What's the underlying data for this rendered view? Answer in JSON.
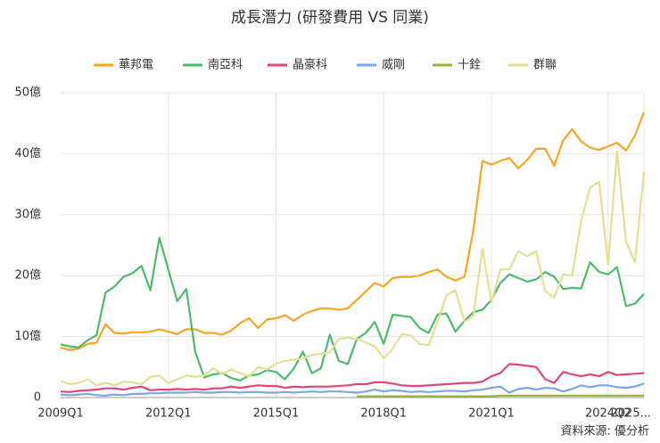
{
  "chart_data": {
    "type": "line",
    "title": "成長潛力 (研發費用 VS 同業)",
    "source": "資料來源: 優分析",
    "categories": [
      "2009Q1",
      null,
      null,
      null,
      null,
      null,
      null,
      null,
      null,
      null,
      null,
      null,
      "2012Q1",
      null,
      null,
      null,
      null,
      null,
      null,
      null,
      null,
      null,
      null,
      null,
      "2015Q1",
      null,
      null,
      null,
      null,
      null,
      null,
      null,
      null,
      null,
      null,
      null,
      "2018Q1",
      null,
      null,
      null,
      null,
      null,
      null,
      null,
      null,
      null,
      null,
      null,
      "2021Q1",
      null,
      null,
      null,
      null,
      null,
      null,
      null,
      null,
      null,
      null,
      null,
      null,
      "2024Q2",
      null,
      null,
      null,
      "2025..."
    ],
    "ylim": [
      0,
      50
    ],
    "yticks": [
      0,
      {
        "value": 10,
        "label": "10億"
      },
      {
        "value": 20,
        "label": "20億"
      },
      {
        "value": 30,
        "label": "30億"
      },
      {
        "value": 40,
        "label": "40億"
      },
      {
        "value": 50,
        "label": "50億"
      }
    ],
    "grid": true,
    "legend": "top",
    "series": [
      {
        "name": "華邦電",
        "color": "#f5a623",
        "values": [
          8.2,
          7.8,
          8.0,
          8.8,
          9.0,
          12.0,
          10.6,
          10.5,
          10.7,
          10.7,
          10.8,
          11.2,
          10.8,
          10.4,
          11.2,
          11.2,
          10.6,
          10.6,
          10.3,
          11.0,
          12.2,
          13.0,
          11.4,
          12.8,
          13.0,
          13.5,
          12.6,
          13.6,
          14.2,
          14.6,
          14.6,
          14.4,
          14.6,
          16.0,
          17.4,
          18.8,
          18.2,
          19.6,
          19.8,
          19.8,
          20.0,
          20.6,
          21.0,
          19.8,
          19.2,
          19.8,
          27.5,
          38.8,
          38.2,
          38.8,
          39.3,
          37.6,
          39.0,
          40.8,
          40.8,
          38.0,
          42.2,
          44.0,
          42.0,
          41.0,
          40.6,
          41.2,
          41.8,
          40.5,
          43.0,
          46.8
        ]
      },
      {
        "name": "南亞科",
        "color": "#4cbb6c",
        "values": [
          8.7,
          8.4,
          8.2,
          9.4,
          10.2,
          17.2,
          18.2,
          19.8,
          20.4,
          21.6,
          17.6,
          26.2,
          21.0,
          15.8,
          17.8,
          7.5,
          3.3,
          3.8,
          4.0,
          3.2,
          2.8,
          3.6,
          3.8,
          4.5,
          4.2,
          3.0,
          4.8,
          7.5,
          4.0,
          4.8,
          10.3,
          6.0,
          5.5,
          9.6,
          10.6,
          12.4,
          8.8,
          13.6,
          13.4,
          13.2,
          11.4,
          10.6,
          13.6,
          13.8,
          10.8,
          12.6,
          14.0,
          14.4,
          16.0,
          18.8,
          20.2,
          19.6,
          19.0,
          19.4,
          20.6,
          19.8,
          17.8,
          18.0,
          17.9,
          22.2,
          20.6,
          20.2,
          21.4,
          15.0,
          15.4,
          17.0
        ]
      },
      {
        "name": "晶豪科",
        "color": "#e0457b",
        "values": [
          1.0,
          0.9,
          1.1,
          1.2,
          1.3,
          1.5,
          1.5,
          1.3,
          1.6,
          1.8,
          1.2,
          1.3,
          1.3,
          1.4,
          1.3,
          1.4,
          1.3,
          1.5,
          1.5,
          1.8,
          1.6,
          1.8,
          2.0,
          1.9,
          1.9,
          1.6,
          1.8,
          1.7,
          1.8,
          1.8,
          1.8,
          1.9,
          2.0,
          2.2,
          2.2,
          2.5,
          2.5,
          2.3,
          2.0,
          1.9,
          1.9,
          2.0,
          2.1,
          2.2,
          2.3,
          2.4,
          2.4,
          2.6,
          3.5,
          4.0,
          5.5,
          5.4,
          5.2,
          5.0,
          3.0,
          2.4,
          4.2,
          3.8,
          3.5,
          3.8,
          3.5,
          4.2,
          3.7,
          3.8,
          3.9,
          4.0
        ]
      },
      {
        "name": "威剛",
        "color": "#7ea6e0",
        "values": [
          0.5,
          0.4,
          0.5,
          0.6,
          0.4,
          0.3,
          0.5,
          0.4,
          0.6,
          0.6,
          0.7,
          0.7,
          0.8,
          0.8,
          0.8,
          0.9,
          0.8,
          0.8,
          0.9,
          0.9,
          0.8,
          0.9,
          0.9,
          0.8,
          0.8,
          0.9,
          0.8,
          0.9,
          1.0,
          0.9,
          1.0,
          1.0,
          0.9,
          0.8,
          1.0,
          1.3,
          1.0,
          1.2,
          1.1,
          0.9,
          1.0,
          0.9,
          1.0,
          1.1,
          1.1,
          1.0,
          1.2,
          1.3,
          1.6,
          1.8,
          0.8,
          1.4,
          1.6,
          1.3,
          1.6,
          1.5,
          1.0,
          1.4,
          2.0,
          1.7,
          2.0,
          2.0,
          1.7,
          1.6,
          1.8,
          2.3
        ]
      },
      {
        "name": "十銓",
        "color": "#9bb53c",
        "values": [
          null,
          null,
          null,
          null,
          null,
          null,
          null,
          null,
          null,
          null,
          null,
          null,
          null,
          null,
          null,
          null,
          null,
          null,
          null,
          null,
          null,
          null,
          null,
          null,
          null,
          null,
          null,
          null,
          null,
          null,
          null,
          null,
          null,
          0.2,
          0.2,
          0.2,
          0.2,
          0.2,
          0.2,
          0.2,
          0.2,
          0.2,
          0.2,
          0.2,
          0.2,
          0.2,
          0.2,
          0.2,
          0.2,
          0.3,
          0.3,
          0.3,
          0.3,
          0.3,
          0.3,
          0.3,
          0.3,
          0.3,
          0.3,
          0.3,
          0.3,
          0.3,
          0.3,
          0.3,
          0.3,
          0.3
        ]
      },
      {
        "name": "群聯",
        "color": "#e3df94",
        "values": [
          2.7,
          2.2,
          2.4,
          3.0,
          2.0,
          2.4,
          2.0,
          2.6,
          2.5,
          2.2,
          3.4,
          3.6,
          2.4,
          3.0,
          3.6,
          3.4,
          3.6,
          4.8,
          3.8,
          4.6,
          4.0,
          3.5,
          5.0,
          4.6,
          5.6,
          6.0,
          6.2,
          6.4,
          7.0,
          7.2,
          7.4,
          9.6,
          9.8,
          9.6,
          9.0,
          8.4,
          6.4,
          8.0,
          10.4,
          10.2,
          8.8,
          8.6,
          12.4,
          16.8,
          17.6,
          12.4,
          13.4,
          24.4,
          15.6,
          21.0,
          21.0,
          24.0,
          23.2,
          24.0,
          17.4,
          16.4,
          20.2,
          20.0,
          29.0,
          34.4,
          35.4,
          21.8,
          40.4,
          25.6,
          22.2,
          37.0
        ]
      }
    ]
  }
}
